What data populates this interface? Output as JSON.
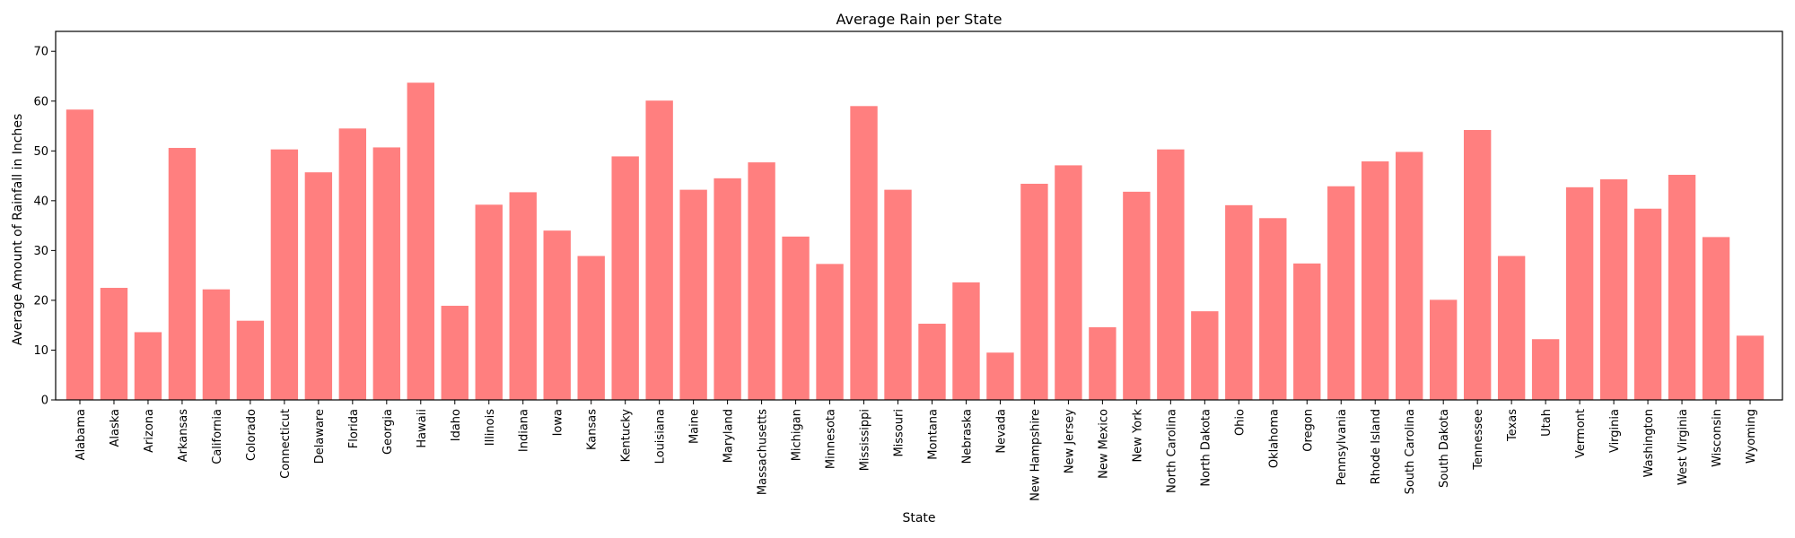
{
  "chart_data": {
    "type": "bar",
    "title": "Average Rain per State",
    "xlabel": "State",
    "ylabel": "Average Amount of Rainfall in Inches",
    "ylim": [
      0,
      74
    ],
    "yticks": [
      0,
      10,
      20,
      30,
      40,
      50,
      60,
      70
    ],
    "grid": false,
    "bar_color": "#ff7f7f",
    "categories": [
      "Alabama",
      "Alaska",
      "Arizona",
      "Arkansas",
      "California",
      "Colorado",
      "Connecticut",
      "Delaware",
      "Florida",
      "Georgia",
      "Hawaii",
      "Idaho",
      "Illinois",
      "Indiana",
      "Iowa",
      "Kansas",
      "Kentucky",
      "Louisiana",
      "Maine",
      "Maryland",
      "Massachusetts",
      "Michigan",
      "Minnesota",
      "Mississippi",
      "Missouri",
      "Montana",
      "Nebraska",
      "Nevada",
      "New Hampshire",
      "New Jersey",
      "New Mexico",
      "New York",
      "North Carolina",
      "North Dakota",
      "Ohio",
      "Oklahoma",
      "Oregon",
      "Pennsylvania",
      "Rhode Island",
      "South Carolina",
      "South Dakota",
      "Tennessee",
      "Texas",
      "Utah",
      "Vermont",
      "Virginia",
      "Washington",
      "West Virginia",
      "Wisconsin",
      "Wyoming"
    ],
    "values": [
      58.3,
      22.5,
      13.6,
      50.6,
      22.2,
      15.9,
      50.3,
      45.7,
      54.5,
      50.7,
      63.7,
      18.9,
      39.2,
      41.7,
      34.0,
      28.9,
      48.9,
      60.1,
      42.2,
      44.5,
      47.7,
      32.8,
      27.3,
      59.0,
      42.2,
      15.3,
      23.6,
      9.5,
      43.4,
      47.1,
      14.6,
      41.8,
      50.3,
      17.8,
      39.1,
      36.5,
      27.4,
      42.9,
      47.9,
      49.8,
      20.1,
      54.2,
      28.9,
      12.2,
      42.7,
      44.3,
      38.4,
      45.2,
      32.7,
      12.9
    ]
  }
}
